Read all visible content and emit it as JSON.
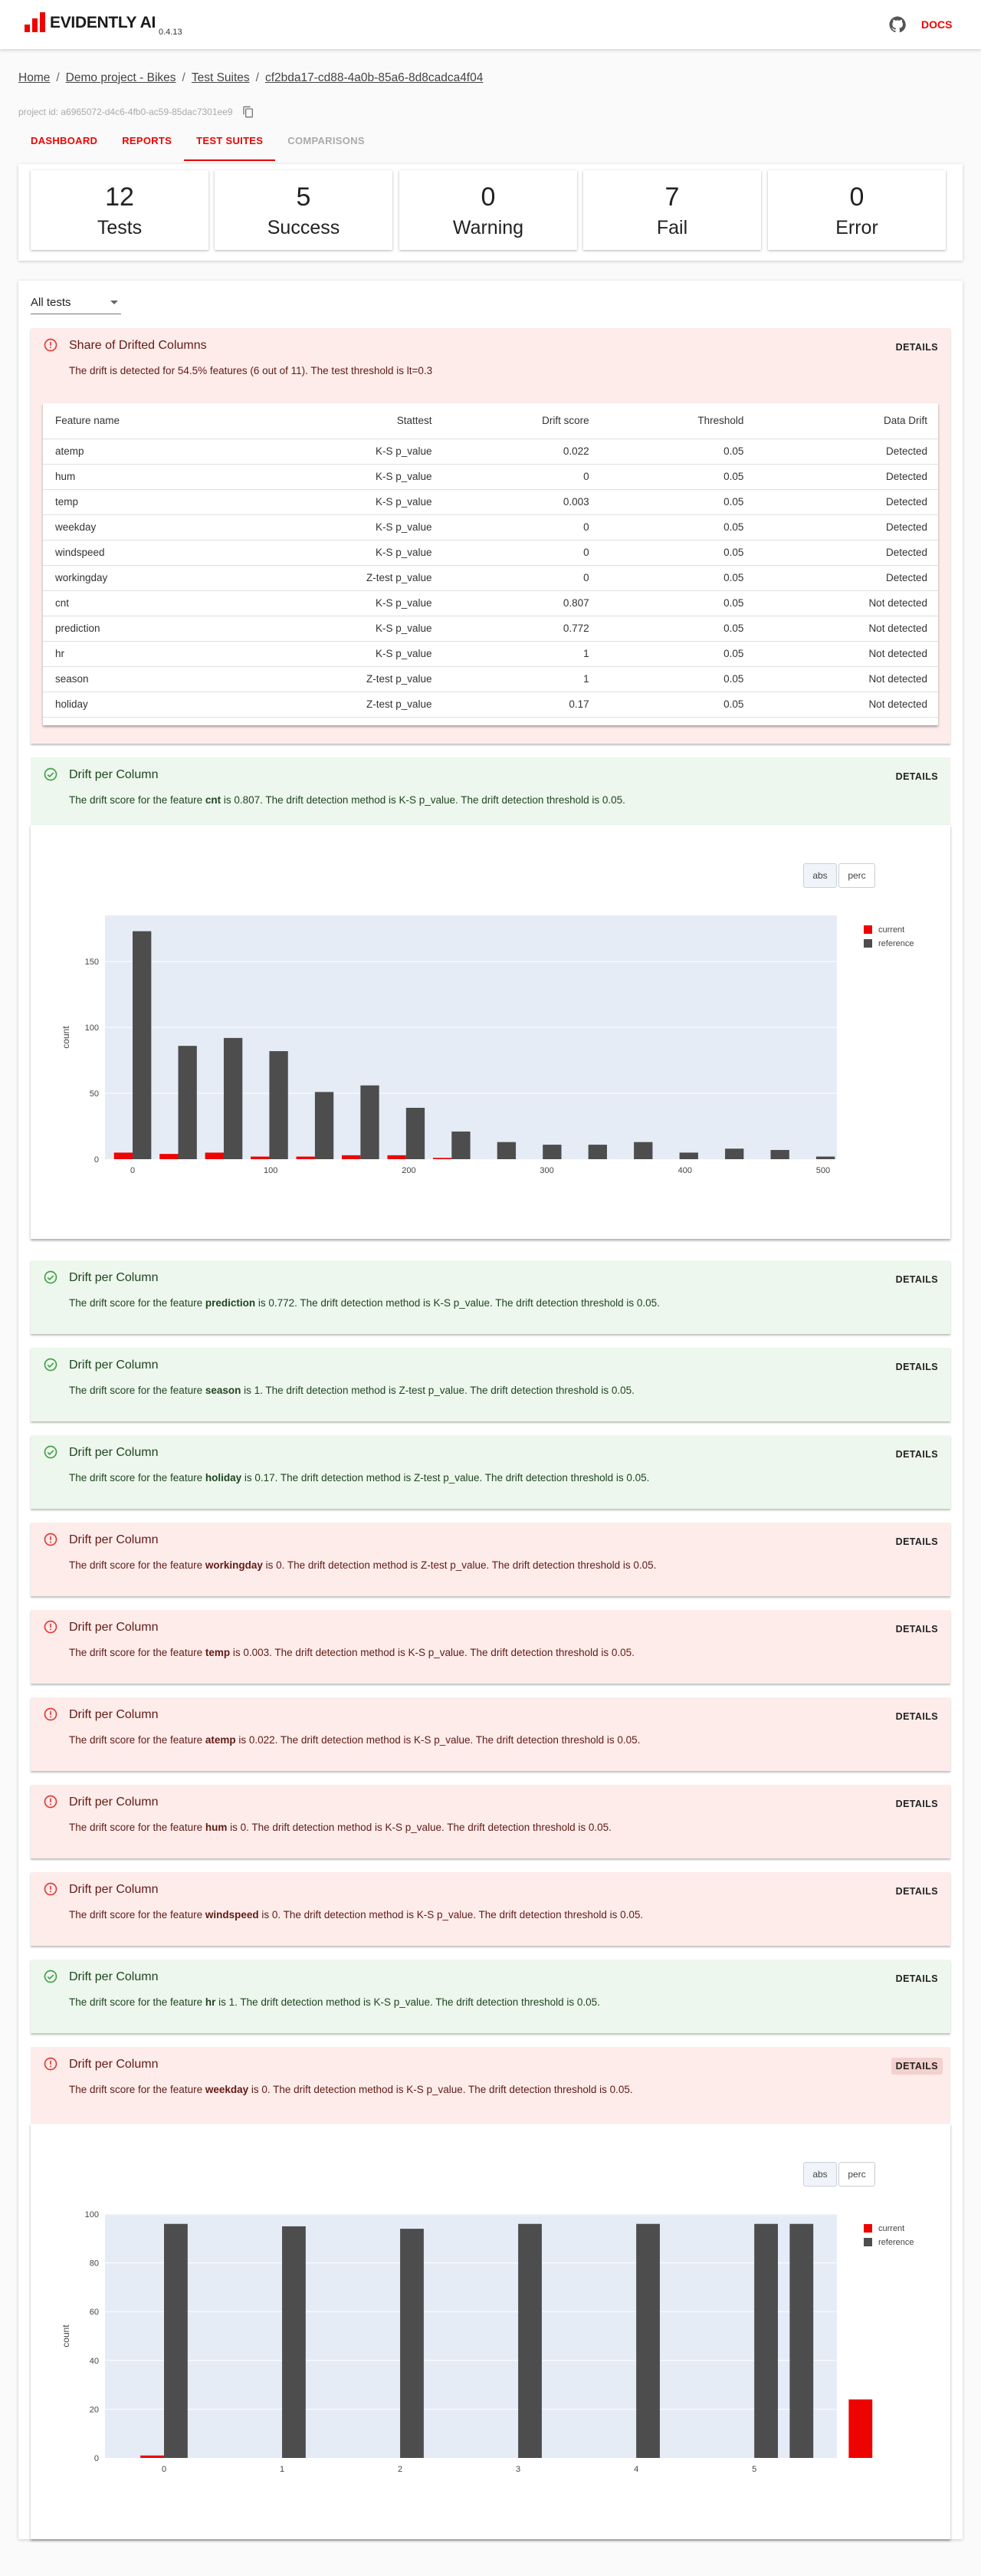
{
  "app": {
    "name": "EVIDENTLY AI",
    "version": "0.4.13",
    "docs_label": "DOCS",
    "github_icon": "github-icon",
    "brand_color": "#ed0400"
  },
  "breadcrumb": [
    "Home",
    "Demo project - Bikes",
    "Test Suites",
    "cf2bda17-cd88-4a0b-85a6-8d8cadca4f04"
  ],
  "project_id": "project id: a6965072-d4c6-4fb0-ac59-85dac7301ee9",
  "tabs": [
    {
      "label": "DASHBOARD",
      "state": "normal"
    },
    {
      "label": "REPORTS",
      "state": "normal"
    },
    {
      "label": "TEST SUITES",
      "state": "active"
    },
    {
      "label": "COMPARISONS",
      "state": "disabled"
    }
  ],
  "summary": [
    {
      "value": "12",
      "label": "Tests"
    },
    {
      "value": "5",
      "label": "Success"
    },
    {
      "value": "0",
      "label": "Warning"
    },
    {
      "value": "7",
      "label": "Fail"
    },
    {
      "value": "0",
      "label": "Error"
    }
  ],
  "filter": {
    "value": "All tests"
  },
  "details_label": "DETAILS",
  "share_test": {
    "title": "Share of Drifted Columns",
    "status": "fail",
    "description": "The drift is detected for 54.5% features (6 out of 11). The test threshold is lt=0.3",
    "table": {
      "headers": [
        "Feature name",
        "Stattest",
        "Drift score",
        "Threshold",
        "Data Drift"
      ],
      "rows": [
        [
          "atemp",
          "K-S p_value",
          "0.022",
          "0.05",
          "Detected"
        ],
        [
          "hum",
          "K-S p_value",
          "0",
          "0.05",
          "Detected"
        ],
        [
          "temp",
          "K-S p_value",
          "0.003",
          "0.05",
          "Detected"
        ],
        [
          "weekday",
          "K-S p_value",
          "0",
          "0.05",
          "Detected"
        ],
        [
          "windspeed",
          "K-S p_value",
          "0",
          "0.05",
          "Detected"
        ],
        [
          "workingday",
          "Z-test p_value",
          "0",
          "0.05",
          "Detected"
        ],
        [
          "cnt",
          "K-S p_value",
          "0.807",
          "0.05",
          "Not detected"
        ],
        [
          "prediction",
          "K-S p_value",
          "0.772",
          "0.05",
          "Not detected"
        ],
        [
          "hr",
          "K-S p_value",
          "1",
          "0.05",
          "Not detected"
        ],
        [
          "season",
          "Z-test p_value",
          "1",
          "0.05",
          "Not detected"
        ],
        [
          "holiday",
          "Z-test p_value",
          "0.17",
          "0.05",
          "Not detected"
        ]
      ]
    }
  },
  "column_tests": [
    {
      "title": "Drift per Column",
      "status": "ok",
      "prefix": "The drift score for the feature ",
      "feature": "cnt",
      "suffix": " is 0.807. The drift detection method is K-S p_value. The drift detection threshold is 0.05."
    },
    {
      "title": "Drift per Column",
      "status": "ok",
      "prefix": "The drift score for the feature ",
      "feature": "prediction",
      "suffix": " is 0.772. The drift detection method is K-S p_value. The drift detection threshold is 0.05."
    },
    {
      "title": "Drift per Column",
      "status": "ok",
      "prefix": "The drift score for the feature ",
      "feature": "season",
      "suffix": " is 1. The drift detection method is Z-test p_value. The drift detection threshold is 0.05."
    },
    {
      "title": "Drift per Column",
      "status": "ok",
      "prefix": "The drift score for the feature ",
      "feature": "holiday",
      "suffix": " is 0.17. The drift detection method is Z-test p_value. The drift detection threshold is 0.05."
    },
    {
      "title": "Drift per Column",
      "status": "fail",
      "prefix": "The drift score for the feature ",
      "feature": "workingday",
      "suffix": " is 0. The drift detection method is Z-test p_value. The drift detection threshold is 0.05."
    },
    {
      "title": "Drift per Column",
      "status": "fail",
      "prefix": "The drift score for the feature ",
      "feature": "temp",
      "suffix": " is 0.003. The drift detection method is K-S p_value. The drift detection threshold is 0.05."
    },
    {
      "title": "Drift per Column",
      "status": "fail",
      "prefix": "The drift score for the feature ",
      "feature": "atemp",
      "suffix": " is 0.022. The drift detection method is K-S p_value. The drift detection threshold is 0.05."
    },
    {
      "title": "Drift per Column",
      "status": "fail",
      "prefix": "The drift score for the feature ",
      "feature": "hum",
      "suffix": " is 0. The drift detection method is K-S p_value. The drift detection threshold is 0.05."
    },
    {
      "title": "Drift per Column",
      "status": "fail",
      "prefix": "The drift score for the feature ",
      "feature": "windspeed",
      "suffix": " is 0. The drift detection method is K-S p_value. The drift detection threshold is 0.05."
    },
    {
      "title": "Drift per Column",
      "status": "ok",
      "prefix": "The drift score for the feature ",
      "feature": "hr",
      "suffix": " is 1. The drift detection method is K-S p_value. The drift detection threshold is 0.05."
    },
    {
      "title": "Drift per Column",
      "status": "fail",
      "prefix": "The drift score for the feature ",
      "feature": "weekday",
      "suffix": " is 0. The drift detection method is K-S p_value. The drift detection threshold is 0.05."
    }
  ],
  "chart_buttons": {
    "abs": "abs",
    "perc": "perc"
  },
  "chart_data": [
    {
      "type": "bar",
      "ylabel": "count",
      "xlim": [
        -20,
        510
      ],
      "ylim": [
        0,
        185
      ],
      "xticks": [
        0,
        100,
        200,
        300,
        400,
        500
      ],
      "yticks": [
        0,
        50,
        100,
        150
      ],
      "legend": "top-right",
      "bar_width": 13.5,
      "series": [
        {
          "name": "current",
          "color": "#ed0400",
          "offset": -6.75,
          "x": [
            0,
            33,
            66,
            99,
            132,
            165,
            198,
            231
          ],
          "values": [
            5,
            4,
            5,
            2,
            2,
            3,
            3,
            1
          ]
        },
        {
          "name": "reference",
          "color": "#4d4d4d",
          "offset": 6.75,
          "x": [
            0,
            33,
            66,
            99,
            132,
            165,
            198,
            231,
            264,
            297,
            330,
            363,
            396,
            429,
            462,
            495
          ],
          "values": [
            173,
            86,
            92,
            82,
            51,
            56,
            39,
            21,
            13,
            11,
            11,
            13,
            5,
            8,
            7,
            2
          ]
        }
      ]
    },
    {
      "type": "bar",
      "ylabel": "count",
      "xlim": [
        -0.5,
        5.7
      ],
      "ylim": [
        0,
        100
      ],
      "xticks": [
        0,
        1,
        2,
        3,
        4,
        5
      ],
      "yticks": [
        0,
        20,
        40,
        60,
        80,
        100
      ],
      "legend": "top-right",
      "bar_width": 0.2,
      "series": [
        {
          "name": "current",
          "color": "#ed0400",
          "offset": -0.1,
          "x": [
            0,
            6
          ],
          "values": [
            1,
            24
          ]
        },
        {
          "name": "reference",
          "color": "#4d4d4d",
          "offset": 0.1,
          "x": [
            0,
            1,
            2,
            3,
            4,
            5,
            5.3
          ],
          "values": [
            96,
            95,
            94,
            96,
            96,
            96,
            96
          ]
        }
      ]
    }
  ]
}
